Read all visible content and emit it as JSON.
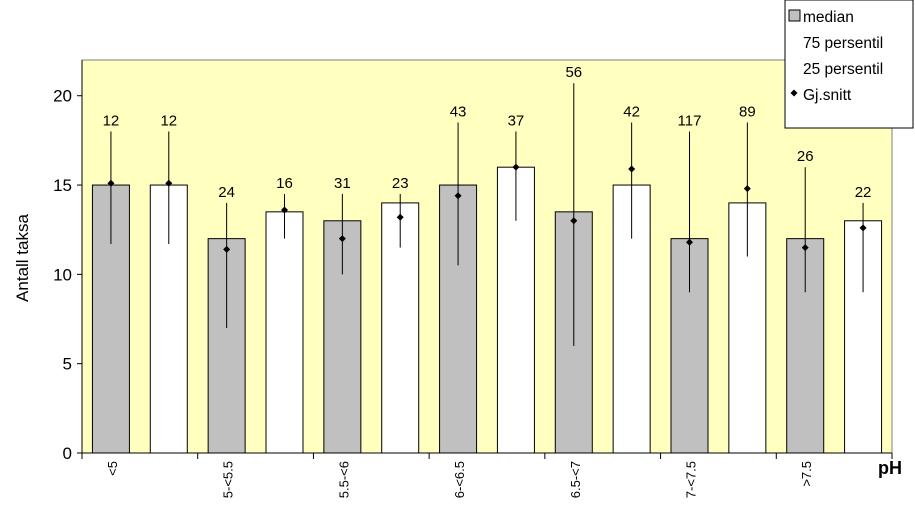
{
  "chart_data": {
    "type": "bar",
    "xlabel": "pH",
    "ylabel": "Antall taksa",
    "ylim": [
      0,
      22
    ],
    "yticks": [
      0,
      5,
      10,
      15,
      20
    ],
    "categories": [
      "<5",
      "5-<5.5",
      "5.5-<6",
      "6-<6.5",
      "6.5-<7",
      "7-<7.5",
      ">7.5"
    ],
    "bars": [
      {
        "category": "<5",
        "fill": "#c0c0c0",
        "median": 15,
        "p75": 18,
        "p25": 11.7,
        "mean": 15.1,
        "n": "12"
      },
      {
        "category": "<5",
        "fill": "#ffffff",
        "median": 15,
        "p75": 18,
        "p25": 11.7,
        "mean": 15.1,
        "n": "12"
      },
      {
        "category": "5-<5.5",
        "fill": "#c0c0c0",
        "median": 12,
        "p75": 14,
        "p25": 7,
        "mean": 11.4,
        "n": "24"
      },
      {
        "category": "5-<5.5",
        "fill": "#ffffff",
        "median": 13.5,
        "p75": 14.5,
        "p25": 12,
        "mean": 13.6,
        "n": "16"
      },
      {
        "category": "5.5-<6",
        "fill": "#c0c0c0",
        "median": 13,
        "p75": 14.5,
        "p25": 10,
        "mean": 12,
        "n": "31"
      },
      {
        "category": "5.5-<6",
        "fill": "#ffffff",
        "median": 14,
        "p75": 14.5,
        "p25": 11.5,
        "mean": 13.2,
        "n": "23"
      },
      {
        "category": "6-<6.5",
        "fill": "#c0c0c0",
        "median": 15,
        "p75": 18.5,
        "p25": 10.5,
        "mean": 14.4,
        "n": "43"
      },
      {
        "category": "6-<6.5",
        "fill": "#ffffff",
        "median": 16,
        "p75": 18,
        "p25": 13,
        "mean": 16,
        "n": "37"
      },
      {
        "category": "6.5-<7",
        "fill": "#c0c0c0",
        "median": 13.5,
        "p75": 20.7,
        "p25": 6,
        "mean": 13,
        "n": "56"
      },
      {
        "category": "6.5-<7",
        "fill": "#ffffff",
        "median": 15,
        "p75": 18.5,
        "p25": 12,
        "mean": 15.9,
        "n": "42"
      },
      {
        "category": "7-<7.5",
        "fill": "#c0c0c0",
        "median": 12,
        "p75": 18,
        "p25": 9,
        "mean": 11.8,
        "n": "117"
      },
      {
        "category": "7-<7.5",
        "fill": "#ffffff",
        "median": 14,
        "p75": 18.5,
        "p25": 11,
        "mean": 14.8,
        "n": "89"
      },
      {
        "category": ">7.5",
        "fill": "#c0c0c0",
        "median": 12,
        "p75": 16,
        "p25": 9,
        "mean": 11.5,
        "n": "26"
      },
      {
        "category": ">7.5",
        "fill": "#ffffff",
        "median": 13,
        "p75": 14,
        "p25": 9,
        "mean": 12.6,
        "n": "22"
      }
    ],
    "legend": {
      "position": "top-right",
      "items": [
        {
          "label": "median",
          "marker": "square"
        },
        {
          "label": "75 persentil",
          "marker": "none"
        },
        {
          "label": "25 persentil",
          "marker": "none"
        },
        {
          "label": "Gj.snitt",
          "marker": "diamond"
        }
      ]
    },
    "colors": {
      "plot_background": "#ffffc0",
      "bar_gray": "#c0c0c0",
      "bar_white": "#ffffff"
    }
  }
}
